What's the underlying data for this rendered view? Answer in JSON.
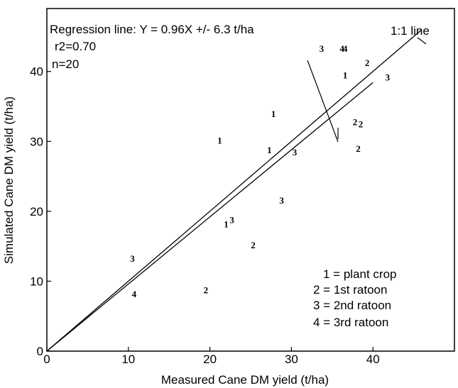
{
  "chart_data": {
    "type": "scatter",
    "title": "",
    "xlabel": "Measured Cane DM yield (t/ha)",
    "ylabel": "Simulated Cane DM yield (t/ha)",
    "xlim": [
      0,
      50
    ],
    "ylim": [
      0,
      49
    ],
    "xticks": [
      0,
      10,
      20,
      30,
      40
    ],
    "yticks": [
      0,
      10,
      20,
      30,
      40
    ],
    "grid": false,
    "annotations": {
      "regression": "Regression line: Y = 0.96X +/- 6.3 t/ha",
      "r2": "r2=0.70",
      "n": "n=20",
      "one_to_one": "1:1 line"
    },
    "legend": {
      "placement": "bottom-right",
      "entries": [
        "1 = plant crop",
        "2 = 1st ratoon",
        "3 = 2nd ratoon",
        "4 = 3rd ratoon"
      ]
    },
    "lines": [
      {
        "name": "1:1 line",
        "slope": 1.0,
        "x": [
          0,
          46
        ]
      },
      {
        "name": "Regression line",
        "slope": 0.96,
        "x": [
          0,
          40
        ]
      }
    ],
    "points": [
      {
        "x": 21.2,
        "y": 30.2,
        "label": "1"
      },
      {
        "x": 27.8,
        "y": 34.0,
        "label": "1"
      },
      {
        "x": 27.3,
        "y": 28.8,
        "label": "1"
      },
      {
        "x": 22.0,
        "y": 18.2,
        "label": "1"
      },
      {
        "x": 36.6,
        "y": 39.5,
        "label": "1"
      },
      {
        "x": 19.5,
        "y": 8.8,
        "label": "2"
      },
      {
        "x": 25.3,
        "y": 15.2,
        "label": "2"
      },
      {
        "x": 38.2,
        "y": 29.0,
        "label": "2"
      },
      {
        "x": 37.8,
        "y": 32.8,
        "label": "2"
      },
      {
        "x": 38.5,
        "y": 32.5,
        "label": "2"
      },
      {
        "x": 39.3,
        "y": 41.3,
        "label": "2"
      },
      {
        "x": 10.5,
        "y": 13.3,
        "label": "3"
      },
      {
        "x": 22.7,
        "y": 18.8,
        "label": "3"
      },
      {
        "x": 28.8,
        "y": 21.6,
        "label": "3"
      },
      {
        "x": 30.4,
        "y": 28.5,
        "label": "3"
      },
      {
        "x": 33.7,
        "y": 43.3,
        "label": "3"
      },
      {
        "x": 41.8,
        "y": 39.2,
        "label": "3"
      },
      {
        "x": 10.7,
        "y": 8.2,
        "label": "4"
      },
      {
        "x": 36.2,
        "y": 43.3,
        "label": "4"
      },
      {
        "x": 36.6,
        "y": 43.3,
        "label": "4"
      }
    ]
  }
}
